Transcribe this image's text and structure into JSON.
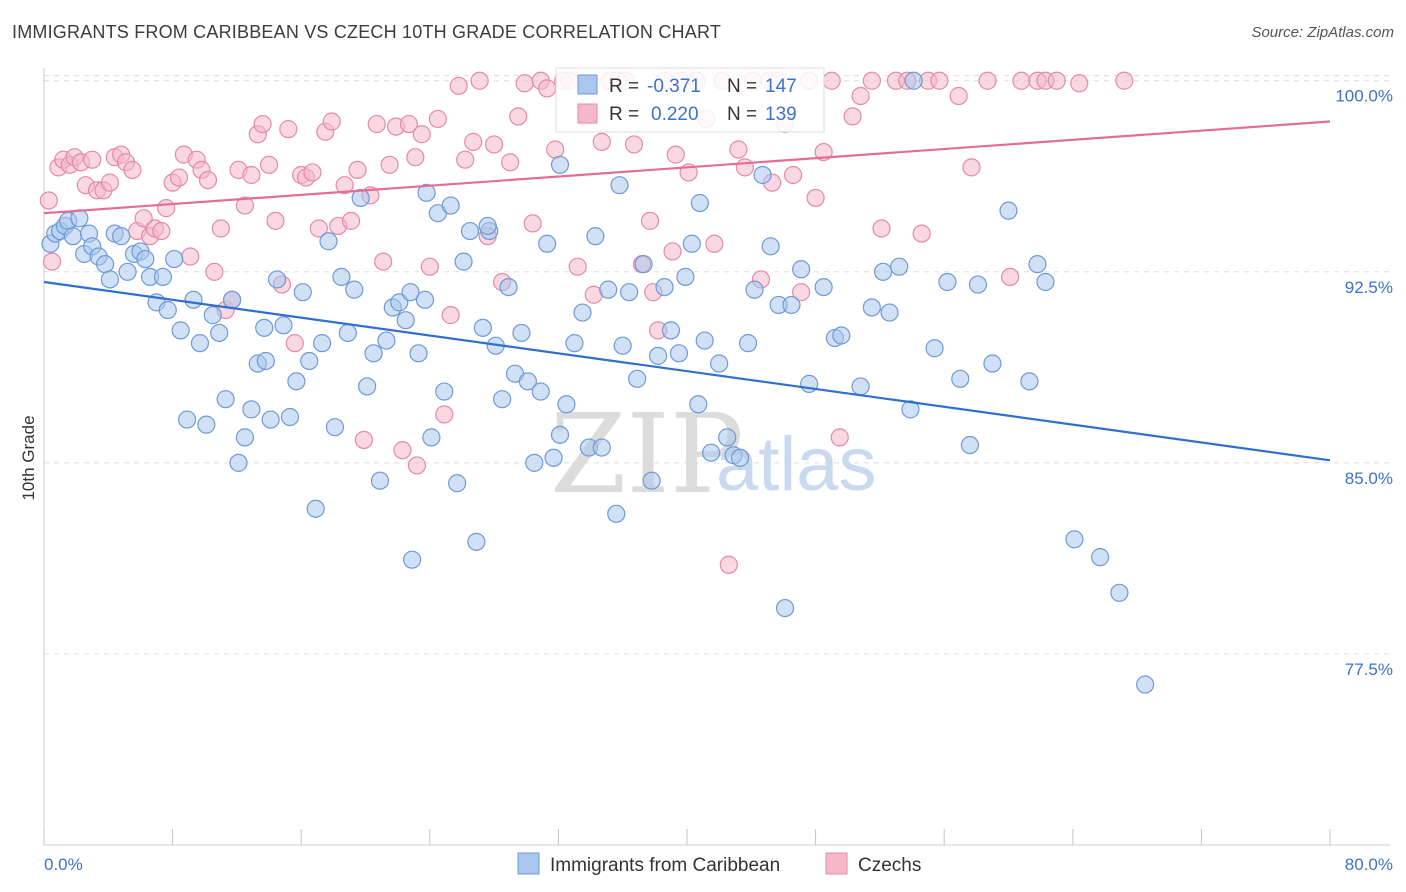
{
  "header": {
    "title": "IMMIGRANTS FROM CARIBBEAN VS CZECH 10TH GRADE CORRELATION CHART",
    "source": "Source: ZipAtlas.com"
  },
  "watermark": {
    "zip": "ZIP",
    "atlas": "atlas"
  },
  "colors": {
    "blue_fill": "#a9c6ec",
    "blue_stroke": "#6f9ad6",
    "blue_line": "#2f6fce",
    "pink_fill": "#f4b8cb",
    "pink_stroke": "#e48aa8",
    "pink_line": "#e56b98",
    "tick_text": "#3b73c8",
    "grid": "#dddddd"
  },
  "stats": {
    "r_label": "R =",
    "n_label": "N =",
    "blue": {
      "r": "-0.371",
      "n": "147"
    },
    "pink": {
      "r": "0.220",
      "n": "139"
    }
  },
  "legend": {
    "series1": "Immigrants from Caribbean",
    "series2": "Czechs"
  },
  "chart_data": {
    "type": "scatter",
    "title": "IMMIGRANTS FROM CARIBBEAN VS CZECH 10TH GRADE CORRELATION CHART",
    "xlabel": "",
    "ylabel": "10th Grade",
    "xlim": [
      0,
      80
    ],
    "ylim": [
      70.0,
      100.5
    ],
    "x_tick_labels": [
      "0.0%",
      "80.0%"
    ],
    "y_ticks": [
      77.5,
      85.0,
      92.5,
      100.0
    ],
    "y_tick_labels": [
      "77.5%",
      "85.0%",
      "92.5%",
      "100.0%"
    ],
    "grid": true,
    "legend_position": "bottom-center",
    "series": [
      {
        "name": "Immigrants from Caribbean",
        "trend": {
          "x": [
            0,
            80
          ],
          "y": [
            92.1,
            85.1
          ]
        },
        "points": [
          [
            0.4,
            93.6
          ],
          [
            0.7,
            94.0
          ],
          [
            1.0,
            94.1
          ],
          [
            1.3,
            94.3
          ],
          [
            1.5,
            94.5
          ],
          [
            1.8,
            93.9
          ],
          [
            2.2,
            94.6
          ],
          [
            2.5,
            93.2
          ],
          [
            2.8,
            94.0
          ],
          [
            3.0,
            93.5
          ],
          [
            3.4,
            93.1
          ],
          [
            3.8,
            92.8
          ],
          [
            4.1,
            92.2
          ],
          [
            4.4,
            94.0
          ],
          [
            4.8,
            93.9
          ],
          [
            5.2,
            92.5
          ],
          [
            5.6,
            93.2
          ],
          [
            6.0,
            93.3
          ],
          [
            6.3,
            93.0
          ],
          [
            6.6,
            92.3
          ],
          [
            7.0,
            91.3
          ],
          [
            7.4,
            92.3
          ],
          [
            7.7,
            91.0
          ],
          [
            8.1,
            93.0
          ],
          [
            8.5,
            90.2
          ],
          [
            8.9,
            86.7
          ],
          [
            9.3,
            91.4
          ],
          [
            9.7,
            89.7
          ],
          [
            10.1,
            86.5
          ],
          [
            10.5,
            90.8
          ],
          [
            10.9,
            90.1
          ],
          [
            11.3,
            87.5
          ],
          [
            11.7,
            91.4
          ],
          [
            12.1,
            85.0
          ],
          [
            12.5,
            86.0
          ],
          [
            12.9,
            87.1
          ],
          [
            13.3,
            88.9
          ],
          [
            13.7,
            90.3
          ],
          [
            14.1,
            86.7
          ],
          [
            14.5,
            92.2
          ],
          [
            14.9,
            90.4
          ],
          [
            15.3,
            86.8
          ],
          [
            15.7,
            88.2
          ],
          [
            16.1,
            91.7
          ],
          [
            16.5,
            89.0
          ],
          [
            16.9,
            83.2
          ],
          [
            17.3,
            89.7
          ],
          [
            17.7,
            93.7
          ],
          [
            18.1,
            86.4
          ],
          [
            18.5,
            92.3
          ],
          [
            18.9,
            90.1
          ],
          [
            19.3,
            91.8
          ],
          [
            19.7,
            95.4
          ],
          [
            20.1,
            88.0
          ],
          [
            20.5,
            89.3
          ],
          [
            20.9,
            84.3
          ],
          [
            21.3,
            89.8
          ],
          [
            21.7,
            91.1
          ],
          [
            22.1,
            91.3
          ],
          [
            22.5,
            90.6
          ],
          [
            22.9,
            81.2
          ],
          [
            23.3,
            89.3
          ],
          [
            23.7,
            91.4
          ],
          [
            24.1,
            86.0
          ],
          [
            24.5,
            94.8
          ],
          [
            24.9,
            87.8
          ],
          [
            25.3,
            95.1
          ],
          [
            25.7,
            84.2
          ],
          [
            26.1,
            92.9
          ],
          [
            26.5,
            94.1
          ],
          [
            26.9,
            81.9
          ],
          [
            27.3,
            90.3
          ],
          [
            27.7,
            94.1
          ],
          [
            28.1,
            89.6
          ],
          [
            28.5,
            87.5
          ],
          [
            28.9,
            91.9
          ],
          [
            29.3,
            88.5
          ],
          [
            29.7,
            90.1
          ],
          [
            30.1,
            88.2
          ],
          [
            30.5,
            85.0
          ],
          [
            30.9,
            87.8
          ],
          [
            31.3,
            93.6
          ],
          [
            31.7,
            85.2
          ],
          [
            32.1,
            86.1
          ],
          [
            32.5,
            87.3
          ],
          [
            33.0,
            89.7
          ],
          [
            33.5,
            90.9
          ],
          [
            33.9,
            85.6
          ],
          [
            34.3,
            93.9
          ],
          [
            34.7,
            85.6
          ],
          [
            35.1,
            91.8
          ],
          [
            35.6,
            83.0
          ],
          [
            36.0,
            89.6
          ],
          [
            36.4,
            91.7
          ],
          [
            36.9,
            88.3
          ],
          [
            37.3,
            92.8
          ],
          [
            37.8,
            84.3
          ],
          [
            38.2,
            89.2
          ],
          [
            38.6,
            91.9
          ],
          [
            39.0,
            90.2
          ],
          [
            39.5,
            89.3
          ],
          [
            39.9,
            92.3
          ],
          [
            40.3,
            93.6
          ],
          [
            40.7,
            87.3
          ],
          [
            41.1,
            89.8
          ],
          [
            41.5,
            85.4
          ],
          [
            42.0,
            88.9
          ],
          [
            42.5,
            86.0
          ],
          [
            42.9,
            85.3
          ],
          [
            43.3,
            85.2
          ],
          [
            43.8,
            89.7
          ],
          [
            44.2,
            91.8
          ],
          [
            44.7,
            96.3
          ],
          [
            45.2,
            93.5
          ],
          [
            45.7,
            91.2
          ],
          [
            46.1,
            79.3
          ],
          [
            46.5,
            91.2
          ],
          [
            47.1,
            92.6
          ],
          [
            47.6,
            88.1
          ],
          [
            48.5,
            91.9
          ],
          [
            49.2,
            89.9
          ],
          [
            49.6,
            90.0
          ],
          [
            50.8,
            88.0
          ],
          [
            51.5,
            91.1
          ],
          [
            52.2,
            92.5
          ],
          [
            52.6,
            90.9
          ],
          [
            53.2,
            92.7
          ],
          [
            53.9,
            87.1
          ],
          [
            54.1,
            100.0
          ],
          [
            55.4,
            89.5
          ],
          [
            56.2,
            92.1
          ],
          [
            57.0,
            88.3
          ],
          [
            57.6,
            85.7
          ],
          [
            58.1,
            92.0
          ],
          [
            59.0,
            88.9
          ],
          [
            60.0,
            94.9
          ],
          [
            61.3,
            88.2
          ],
          [
            61.8,
            92.8
          ],
          [
            62.3,
            92.1
          ],
          [
            64.1,
            82.0
          ],
          [
            65.7,
            81.3
          ],
          [
            66.9,
            79.9
          ],
          [
            68.5,
            76.3
          ],
          [
            40.8,
            95.2
          ],
          [
            32.1,
            96.7
          ],
          [
            23.8,
            95.6
          ],
          [
            27.6,
            94.3
          ],
          [
            22.8,
            91.7
          ],
          [
            35.8,
            95.9
          ],
          [
            13.8,
            89.0
          ]
        ]
      },
      {
        "name": "Czechs",
        "trend": {
          "x": [
            0,
            80
          ],
          "y": [
            94.8,
            98.4
          ]
        },
        "points": [
          [
            0.3,
            95.3
          ],
          [
            0.5,
            92.9
          ],
          [
            0.9,
            96.6
          ],
          [
            1.2,
            96.9
          ],
          [
            1.6,
            96.7
          ],
          [
            1.9,
            97.0
          ],
          [
            2.3,
            96.8
          ],
          [
            2.6,
            95.9
          ],
          [
            3.0,
            96.9
          ],
          [
            3.3,
            95.7
          ],
          [
            3.7,
            95.7
          ],
          [
            4.1,
            96.0
          ],
          [
            4.4,
            97.0
          ],
          [
            4.8,
            97.1
          ],
          [
            5.1,
            96.8
          ],
          [
            5.5,
            96.5
          ],
          [
            5.8,
            94.1
          ],
          [
            6.2,
            94.6
          ],
          [
            6.6,
            93.9
          ],
          [
            6.9,
            94.2
          ],
          [
            7.3,
            94.1
          ],
          [
            7.6,
            95.0
          ],
          [
            8.0,
            96.0
          ],
          [
            8.4,
            96.2
          ],
          [
            8.7,
            97.1
          ],
          [
            9.1,
            93.1
          ],
          [
            9.5,
            96.9
          ],
          [
            9.8,
            96.5
          ],
          [
            10.2,
            96.1
          ],
          [
            10.6,
            92.5
          ],
          [
            11.0,
            94.2
          ],
          [
            11.3,
            91.0
          ],
          [
            11.7,
            91.4
          ],
          [
            12.1,
            96.5
          ],
          [
            12.5,
            95.1
          ],
          [
            12.9,
            96.3
          ],
          [
            13.3,
            97.9
          ],
          [
            13.6,
            98.3
          ],
          [
            14.0,
            96.7
          ],
          [
            14.4,
            94.5
          ],
          [
            14.8,
            92.0
          ],
          [
            15.2,
            98.1
          ],
          [
            15.6,
            89.7
          ],
          [
            16.0,
            96.3
          ],
          [
            16.3,
            96.2
          ],
          [
            16.7,
            96.4
          ],
          [
            17.1,
            94.2
          ],
          [
            17.5,
            98.0
          ],
          [
            17.9,
            98.4
          ],
          [
            18.3,
            94.3
          ],
          [
            18.7,
            95.9
          ],
          [
            19.1,
            94.5
          ],
          [
            19.5,
            96.5
          ],
          [
            19.9,
            85.9
          ],
          [
            20.3,
            95.5
          ],
          [
            20.7,
            98.3
          ],
          [
            21.1,
            92.9
          ],
          [
            21.5,
            96.7
          ],
          [
            21.9,
            98.2
          ],
          [
            22.3,
            85.5
          ],
          [
            22.7,
            98.3
          ],
          [
            23.1,
            97.0
          ],
          [
            23.5,
            97.9
          ],
          [
            24.0,
            92.7
          ],
          [
            24.5,
            98.5
          ],
          [
            24.9,
            86.9
          ],
          [
            25.3,
            90.8
          ],
          [
            25.8,
            99.8
          ],
          [
            26.2,
            96.9
          ],
          [
            26.7,
            97.6
          ],
          [
            27.1,
            100.0
          ],
          [
            27.6,
            93.9
          ],
          [
            28.0,
            97.5
          ],
          [
            28.5,
            92.1
          ],
          [
            29.0,
            96.8
          ],
          [
            29.5,
            98.6
          ],
          [
            29.9,
            99.9
          ],
          [
            30.4,
            94.4
          ],
          [
            30.9,
            100.0
          ],
          [
            31.3,
            99.7
          ],
          [
            31.8,
            97.3
          ],
          [
            32.3,
            100.0
          ],
          [
            32.7,
            100.0
          ],
          [
            33.2,
            92.7
          ],
          [
            33.7,
            98.6
          ],
          [
            34.2,
            91.6
          ],
          [
            34.7,
            97.6
          ],
          [
            35.2,
            100.0
          ],
          [
            35.7,
            100.0
          ],
          [
            36.2,
            100.0
          ],
          [
            36.7,
            97.5
          ],
          [
            37.2,
            92.8
          ],
          [
            37.7,
            94.5
          ],
          [
            38.2,
            90.2
          ],
          [
            38.6,
            100.0
          ],
          [
            39.1,
            93.3
          ],
          [
            39.6,
            100.0
          ],
          [
            40.1,
            96.4
          ],
          [
            40.6,
            100.0
          ],
          [
            41.2,
            98.5
          ],
          [
            41.7,
            93.6
          ],
          [
            42.2,
            100.0
          ],
          [
            42.6,
            81.0
          ],
          [
            43.2,
            97.3
          ],
          [
            43.6,
            96.6
          ],
          [
            44.1,
            100.0
          ],
          [
            44.6,
            92.2
          ],
          [
            45.1,
            100.0
          ],
          [
            45.6,
            100.0
          ],
          [
            46.1,
            98.3
          ],
          [
            46.6,
            96.3
          ],
          [
            47.1,
            91.7
          ],
          [
            47.6,
            100.0
          ],
          [
            48.0,
            95.4
          ],
          [
            48.5,
            97.2
          ],
          [
            49.0,
            100.0
          ],
          [
            49.5,
            86.0
          ],
          [
            50.3,
            98.6
          ],
          [
            50.8,
            99.4
          ],
          [
            51.5,
            100.0
          ],
          [
            52.1,
            94.2
          ],
          [
            53.0,
            100.0
          ],
          [
            53.7,
            100.0
          ],
          [
            54.6,
            94.0
          ],
          [
            55.0,
            100.0
          ],
          [
            55.7,
            100.0
          ],
          [
            56.9,
            99.4
          ],
          [
            57.7,
            96.6
          ],
          [
            58.7,
            100.0
          ],
          [
            60.1,
            92.3
          ],
          [
            60.8,
            100.0
          ],
          [
            61.8,
            100.0
          ],
          [
            62.3,
            100.0
          ],
          [
            63.0,
            100.0
          ],
          [
            64.4,
            99.9
          ],
          [
            67.2,
            100.0
          ],
          [
            37.9,
            91.7
          ],
          [
            39.3,
            97.1
          ],
          [
            45.3,
            96.0
          ],
          [
            23.2,
            84.9
          ]
        ]
      }
    ]
  }
}
